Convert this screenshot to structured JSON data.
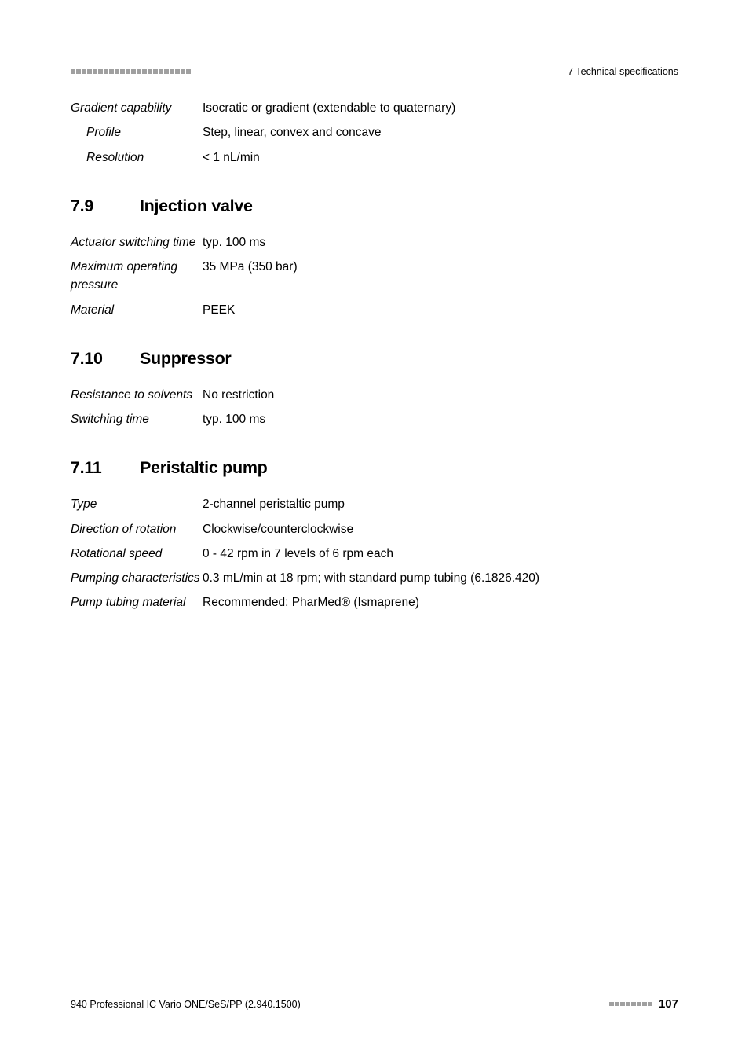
{
  "header": {
    "chapter": "7 Technical specifications",
    "squares_count": 22,
    "square_color": "#a0a0a0"
  },
  "intro_specs": [
    {
      "label": "Gradient capability",
      "value": "Isocratic or gradient (extendable to quaternary)",
      "sub": false
    },
    {
      "label": "Profile",
      "value": "Step, linear, convex and concave",
      "sub": true
    },
    {
      "label": "Resolution",
      "value": "< 1 nL/min",
      "sub": true
    }
  ],
  "sections": [
    {
      "num": "7.9",
      "title": "Injection valve",
      "rows": [
        {
          "label": "Actuator switching time",
          "value": "typ. 100 ms",
          "sub": false
        },
        {
          "label": "Maximum operating pressure",
          "value": "35 MPa (350 bar)",
          "sub": false
        },
        {
          "label": "Material",
          "value": "PEEK",
          "sub": false
        }
      ]
    },
    {
      "num": "7.10",
      "title": "Suppressor",
      "rows": [
        {
          "label": "Resistance to solvents",
          "value": "No restriction",
          "sub": false
        },
        {
          "label": "Switching time",
          "value": "typ. 100 ms",
          "sub": false
        }
      ]
    },
    {
      "num": "7.11",
      "title": "Peristaltic pump",
      "rows": [
        {
          "label": "Type",
          "value": "2-channel peristaltic pump",
          "sub": false
        },
        {
          "label": "Direction of rotation",
          "value": "Clockwise/counterclockwise",
          "sub": false
        },
        {
          "label": "Rotational speed",
          "value": "0 - 42 rpm in 7 levels of 6 rpm each",
          "sub": false
        },
        {
          "label": "Pumping characteristics",
          "value": "0.3 mL/min at 18 rpm; with standard pump tubing (6.1826.420)",
          "sub": false
        },
        {
          "label": "Pump tubing material",
          "value": "Recommended: PharMed® (Ismaprene)",
          "sub": false
        }
      ]
    }
  ],
  "footer": {
    "left": "940 Professional IC Vario ONE/SeS/PP (2.940.1500)",
    "squares_count": 8,
    "square_color": "#a0a0a0",
    "page_number": "107"
  }
}
